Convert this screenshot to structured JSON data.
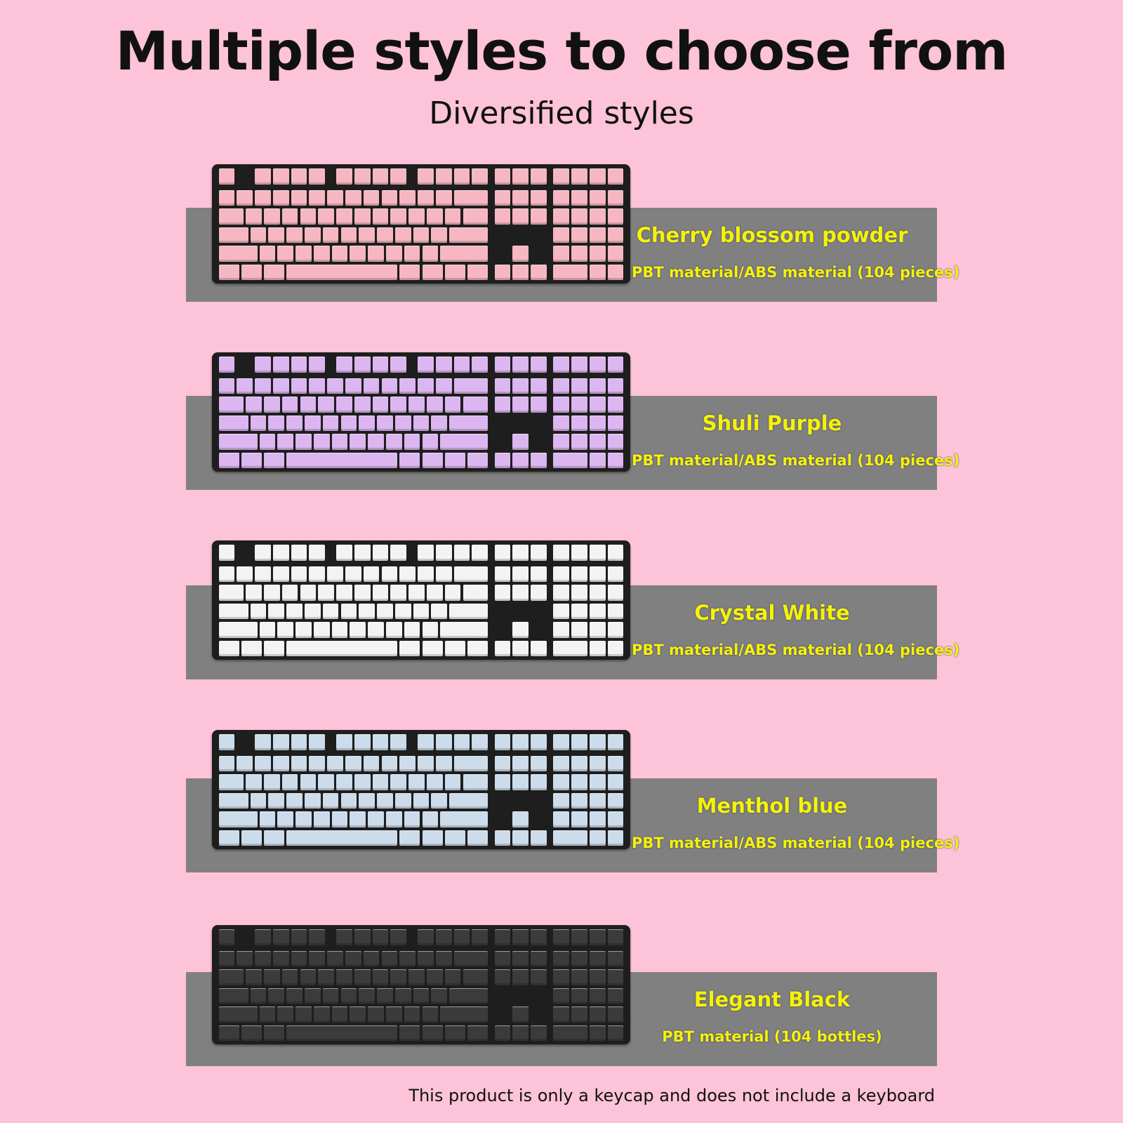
{
  "header": {
    "title": "Multiple styles to choose from",
    "subtitle": "Diversified styles"
  },
  "styles": [
    {
      "name": "Cherry blossom powder",
      "material": "PBT material/ABS material (104 pieces)",
      "keycap_color": "#f6b7c2"
    },
    {
      "name": "Shuli Purple",
      "material": "PBT material/ABS material (104 pieces)",
      "keycap_color": "#dcb6f0"
    },
    {
      "name": "Crystal White",
      "material": "PBT material/ABS material (104 pieces)",
      "keycap_color": "#f3f3f3"
    },
    {
      "name": "Menthol blue",
      "material": "PBT material/ABS material (104 pieces)",
      "keycap_color": "#cddcea"
    },
    {
      "name": "Elegant Black",
      "material": "PBT material (104 bottles)",
      "keycap_color": "#3b3b3b"
    }
  ],
  "colors": {
    "background": "#fdc3d8",
    "panel": "#808080",
    "label_text": "#f4f400"
  },
  "footer": {
    "note": "This product is only a keycap and does not include a keyboard"
  }
}
